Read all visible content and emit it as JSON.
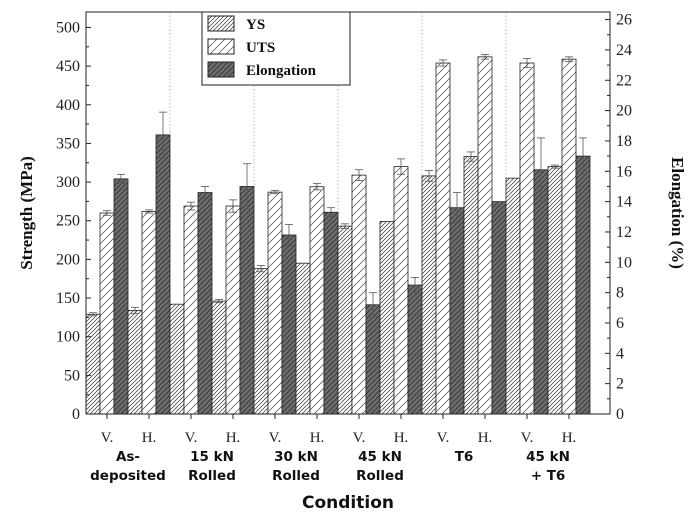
{
  "chart_data": {
    "type": "bar",
    "xlabel": "Condition",
    "ylabel_left": "Strength (MPa)",
    "ylabel_right": "Elongation (%)",
    "ylim_left": [
      0,
      520
    ],
    "ylim_right": [
      0,
      26.5
    ],
    "yticks_left": [
      "0",
      "50",
      "100",
      "150",
      "200",
      "250",
      "300",
      "350",
      "400",
      "450",
      "500"
    ],
    "yticks_right": [
      "0",
      "2",
      "4",
      "6",
      "8",
      "10",
      "12",
      "14",
      "16",
      "18",
      "20",
      "22",
      "24",
      "26"
    ],
    "groups": [
      {
        "label": [
          "As-",
          "deposited"
        ],
        "subs": [
          "V.",
          "H."
        ]
      },
      {
        "label": [
          "15 kN",
          "Rolled"
        ],
        "subs": [
          "V.",
          "H."
        ]
      },
      {
        "label": [
          "30 kN",
          "Rolled"
        ],
        "subs": [
          "V.",
          "H."
        ]
      },
      {
        "label": [
          "45 kN",
          "Rolled"
        ],
        "subs": [
          "V.",
          "H."
        ]
      },
      {
        "label": [
          "T6"
        ],
        "subs": [
          "V.",
          "H."
        ]
      },
      {
        "label": [
          "45 kN",
          "+ T6"
        ],
        "subs": [
          "V.",
          "H."
        ]
      }
    ],
    "series": [
      {
        "name": "YS",
        "axis": "left",
        "pattern": "ys",
        "values": [
          129,
          134,
          142,
          146,
          188,
          195,
          243,
          249,
          308,
          333,
          305,
          320
        ],
        "errors": [
          2,
          4,
          0,
          2,
          4,
          0,
          3,
          0,
          7,
          6,
          0,
          2
        ]
      },
      {
        "name": "UTS",
        "axis": "left",
        "pattern": "uts",
        "values": [
          260,
          262,
          269,
          269,
          287,
          294,
          309,
          320,
          454,
          462,
          454,
          459
        ],
        "errors": [
          3,
          2,
          5,
          8,
          2,
          4,
          7,
          10,
          4,
          3,
          6,
          3
        ]
      },
      {
        "name": "Elongation",
        "axis": "right",
        "pattern": "elong",
        "values": [
          15.5,
          18.4,
          14.6,
          15.0,
          11.8,
          13.3,
          7.2,
          8.5,
          13.6,
          14.0,
          16.1,
          17.0
        ],
        "errors": [
          0.3,
          1.5,
          0.4,
          1.5,
          0.7,
          0.3,
          0.8,
          0.5,
          1.0,
          0.0,
          2.1,
          1.2
        ]
      }
    ],
    "legend": {
      "position": "top-center"
    },
    "grid": false
  }
}
